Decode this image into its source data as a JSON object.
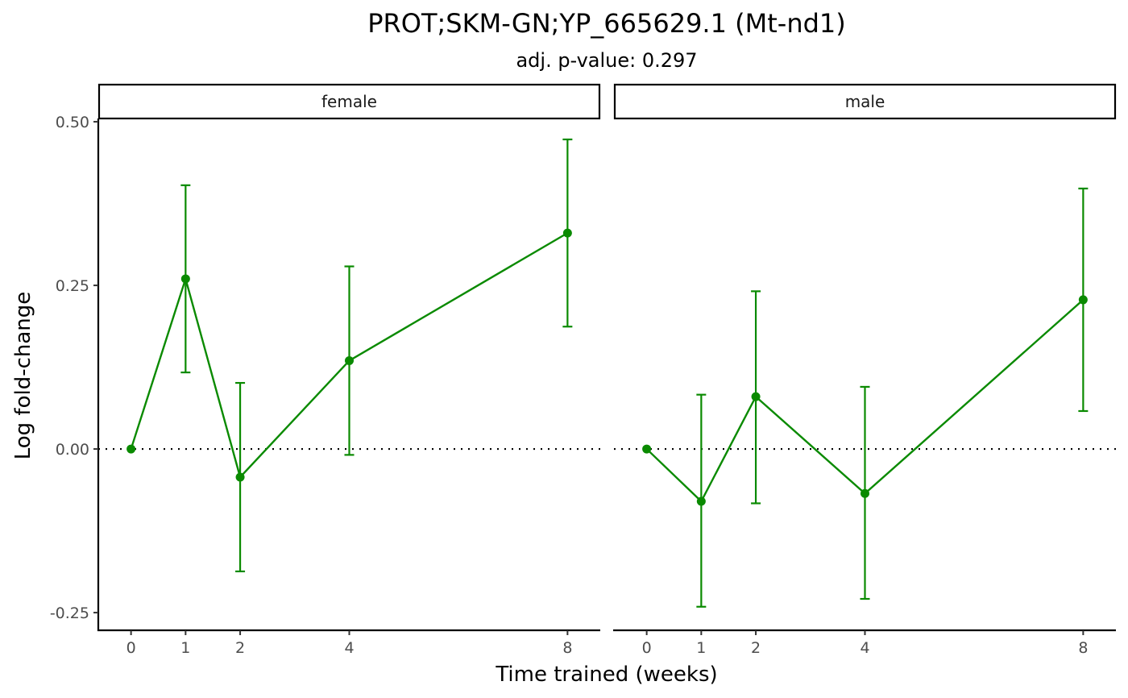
{
  "chart_data": {
    "type": "line",
    "title": "PROT;SKM-GN;YP_665629.1 (Mt-nd1)",
    "subtitle": "adj. p-value: 0.297",
    "xlabel": "Time trained (weeks)",
    "ylabel": "Log fold-change",
    "x_ticks": [
      0,
      1,
      2,
      4,
      8
    ],
    "y_ticks": [
      0.5,
      0.25,
      0.0,
      -0.25
    ],
    "y_tick_labels": [
      "0.50",
      "0.25",
      "0.00",
      "-0.25"
    ],
    "xlim": [
      -0.6,
      8.6
    ],
    "ylim": [
      -0.277,
      0.505
    ],
    "reference_line": {
      "y": 0,
      "style": "dotted"
    },
    "color": "#0a8a00",
    "grid": false,
    "facets": [
      {
        "label": "female",
        "x": [
          0,
          1,
          2,
          4,
          8
        ],
        "y": [
          0.0,
          0.26,
          -0.043,
          0.135,
          0.33
        ],
        "ymin": [
          0.0,
          0.117,
          -0.187,
          -0.009,
          0.187
        ],
        "ymax": [
          0.0,
          0.403,
          0.101,
          0.279,
          0.473
        ]
      },
      {
        "label": "male",
        "x": [
          0,
          1,
          2,
          4,
          8
        ],
        "y": [
          0.0,
          -0.08,
          0.08,
          -0.068,
          0.228
        ],
        "ymin": [
          0.0,
          -0.241,
          -0.083,
          -0.229,
          0.058
        ],
        "ymax": [
          0.0,
          0.083,
          0.241,
          0.095,
          0.398
        ]
      }
    ]
  }
}
